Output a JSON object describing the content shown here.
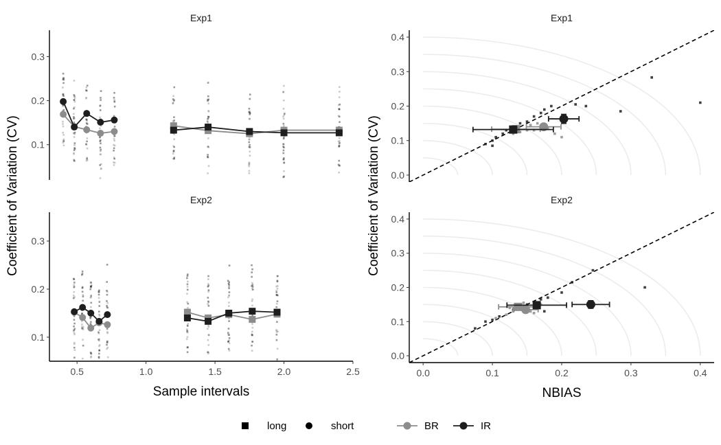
{
  "colors": {
    "BR": "#8c8c8c",
    "IR": "#1e1e1e",
    "circle": "#ececec",
    "axis": "#000000"
  },
  "legend": {
    "shape_items": [
      {
        "label": "long",
        "shape": "square"
      },
      {
        "label": "short",
        "shape": "circle"
      }
    ],
    "color_items": [
      {
        "label": "BR",
        "color": "BR"
      },
      {
        "label": "IR",
        "color": "IR"
      }
    ]
  },
  "chart_data": [
    {
      "type": "line",
      "panel": "left-top",
      "title": "Exp1",
      "xlabel": "Sample intervals",
      "ylabel": "Coefficient of Variation (CV)",
      "xlim": [
        0.3,
        2.5
      ],
      "ylim": [
        0.02,
        0.36
      ],
      "xticks": [
        0.5,
        1.0,
        1.5,
        2.0,
        2.5
      ],
      "xtick_labels": [
        "0.5",
        "1.0",
        "1.5",
        "2.0",
        "2.5"
      ],
      "yticks": [
        0.1,
        0.2,
        0.3
      ],
      "ytick_labels": [
        "0.1",
        "0.2",
        "0.3"
      ],
      "show_x_axis": false,
      "series": [
        {
          "name": "BR",
          "group": "short",
          "shape": "circle",
          "x": [
            0.4,
            0.48,
            0.57,
            0.67,
            0.77
          ],
          "y": [
            0.169,
            0.141,
            0.134,
            0.126,
            0.13
          ]
        },
        {
          "name": "IR",
          "group": "short",
          "shape": "circle",
          "x": [
            0.4,
            0.48,
            0.57,
            0.67,
            0.77
          ],
          "y": [
            0.198,
            0.14,
            0.171,
            0.151,
            0.156
          ]
        },
        {
          "name": "BR",
          "group": "long",
          "shape": "square",
          "x": [
            1.2,
            1.45,
            1.75,
            2.0,
            2.4
          ],
          "y": [
            0.143,
            0.132,
            0.125,
            0.133,
            0.133
          ]
        },
        {
          "name": "IR",
          "group": "long",
          "shape": "square",
          "x": [
            1.2,
            1.45,
            1.75,
            2.0,
            2.4
          ],
          "y": [
            0.133,
            0.14,
            0.13,
            0.127,
            0.127
          ]
        }
      ]
    },
    {
      "type": "line",
      "panel": "left-bottom",
      "title": "Exp2",
      "xlabel": "Sample intervals",
      "ylabel": "Coefficient of Variation (CV)",
      "xlim": [
        0.3,
        2.5
      ],
      "ylim": [
        0.05,
        0.36
      ],
      "xticks": [
        0.5,
        1.0,
        1.5,
        2.0,
        2.5
      ],
      "xtick_labels": [
        "0.5",
        "1.0",
        "1.5",
        "2.0",
        "2.5"
      ],
      "yticks": [
        0.1,
        0.2,
        0.3
      ],
      "ytick_labels": [
        "0.1",
        "0.2",
        "0.3"
      ],
      "show_x_axis": true,
      "series": [
        {
          "name": "BR",
          "group": "short",
          "shape": "circle",
          "x": [
            0.48,
            0.54,
            0.6,
            0.66,
            0.72
          ],
          "y": [
            0.152,
            0.141,
            0.119,
            0.13,
            0.126
          ]
        },
        {
          "name": "IR",
          "group": "short",
          "shape": "circle",
          "x": [
            0.48,
            0.54,
            0.6,
            0.66,
            0.72
          ],
          "y": [
            0.153,
            0.162,
            0.15,
            0.133,
            0.147
          ]
        },
        {
          "name": "BR",
          "group": "long",
          "shape": "square",
          "x": [
            1.3,
            1.45,
            1.6,
            1.77,
            1.95
          ],
          "y": [
            0.152,
            0.14,
            0.147,
            0.137,
            0.148
          ]
        },
        {
          "name": "IR",
          "group": "long",
          "shape": "square",
          "x": [
            1.3,
            1.45,
            1.6,
            1.77,
            1.95
          ],
          "y": [
            0.14,
            0.133,
            0.15,
            0.154,
            0.152
          ]
        }
      ]
    },
    {
      "type": "scatter",
      "panel": "right-top",
      "title": "Exp1",
      "xlabel": "NBIAS",
      "ylabel": "Coefficient of Variation (CV)",
      "xlim": [
        -0.02,
        0.42
      ],
      "ylim": [
        -0.02,
        0.42
      ],
      "xticks": [
        0.0,
        0.1,
        0.2,
        0.3,
        0.4
      ],
      "xtick_labels": [
        "0.0",
        "0.1",
        "0.2",
        "0.3",
        "0.4"
      ],
      "yticks": [
        0.0,
        0.1,
        0.2,
        0.3,
        0.4
      ],
      "ytick_labels": [
        "0.0",
        "0.1",
        "0.2",
        "0.3",
        "0.4"
      ],
      "show_x_axis": false,
      "reference_line": "y = x",
      "reference_circles_radius": [
        0.05,
        0.1,
        0.15,
        0.2,
        0.25,
        0.3,
        0.35,
        0.4
      ],
      "points": [
        {
          "x": 0.09,
          "y": 0.09,
          "color": "IR"
        },
        {
          "x": 0.1,
          "y": 0.1,
          "color": "IR"
        },
        {
          "x": 0.105,
          "y": 0.11,
          "color": "IR"
        },
        {
          "x": 0.115,
          "y": 0.12,
          "color": "IR"
        },
        {
          "x": 0.12,
          "y": 0.13,
          "color": "IR"
        },
        {
          "x": 0.135,
          "y": 0.14,
          "color": "IR"
        },
        {
          "x": 0.14,
          "y": 0.15,
          "color": "IR"
        },
        {
          "x": 0.15,
          "y": 0.155,
          "color": "IR"
        },
        {
          "x": 0.16,
          "y": 0.17,
          "color": "IR"
        },
        {
          "x": 0.17,
          "y": 0.18,
          "color": "IR"
        },
        {
          "x": 0.175,
          "y": 0.19,
          "color": "IR"
        },
        {
          "x": 0.185,
          "y": 0.2,
          "color": "IR"
        },
        {
          "x": 0.22,
          "y": 0.205,
          "color": "IR"
        },
        {
          "x": 0.235,
          "y": 0.2,
          "color": "IR"
        },
        {
          "x": 0.285,
          "y": 0.185,
          "color": "IR"
        },
        {
          "x": 0.33,
          "y": 0.283,
          "color": "IR"
        },
        {
          "x": 0.4,
          "y": 0.21,
          "color": "IR"
        },
        {
          "x": 0.1,
          "y": 0.085,
          "color": "IR"
        },
        {
          "x": 0.13,
          "y": 0.12,
          "color": "BR"
        },
        {
          "x": 0.14,
          "y": 0.125,
          "color": "BR"
        },
        {
          "x": 0.15,
          "y": 0.13,
          "color": "BR"
        },
        {
          "x": 0.16,
          "y": 0.13,
          "color": "BR"
        },
        {
          "x": 0.17,
          "y": 0.14,
          "color": "BR"
        },
        {
          "x": 0.18,
          "y": 0.135,
          "color": "BR"
        },
        {
          "x": 0.19,
          "y": 0.12,
          "color": "BR"
        },
        {
          "x": 0.2,
          "y": 0.11,
          "color": "BR"
        },
        {
          "x": 0.165,
          "y": 0.15,
          "color": "BR"
        },
        {
          "x": 0.155,
          "y": 0.145,
          "color": "BR"
        }
      ],
      "means": [
        {
          "name": "BR",
          "group": "short",
          "x": 0.174,
          "y": 0.14,
          "xerr": 0.025,
          "yerr": 0.008
        },
        {
          "name": "BR",
          "group": "long",
          "x": 0.134,
          "y": 0.133,
          "xerr": 0.035,
          "yerr": 0.008
        },
        {
          "name": "IR",
          "group": "short",
          "x": 0.203,
          "y": 0.163,
          "xerr": 0.022,
          "yerr": 0.013
        },
        {
          "name": "IR",
          "group": "long",
          "x": 0.13,
          "y": 0.132,
          "xerr": 0.058,
          "yerr": 0.008
        }
      ]
    },
    {
      "type": "scatter",
      "panel": "right-bottom",
      "title": "Exp2",
      "xlabel": "NBIAS",
      "ylabel": "Coefficient of Variation (CV)",
      "xlim": [
        -0.02,
        0.42
      ],
      "ylim": [
        -0.02,
        0.42
      ],
      "xticks": [
        0.0,
        0.1,
        0.2,
        0.3,
        0.4
      ],
      "xtick_labels": [
        "0.0",
        "0.1",
        "0.2",
        "0.3",
        "0.4"
      ],
      "yticks": [
        0.0,
        0.1,
        0.2,
        0.3,
        0.4
      ],
      "ytick_labels": [
        "0.0",
        "0.1",
        "0.2",
        "0.3",
        "0.4"
      ],
      "show_x_axis": true,
      "reference_line": "y = x",
      "reference_circles_radius": [
        0.05,
        0.1,
        0.15,
        0.2,
        0.25,
        0.3,
        0.35,
        0.4
      ],
      "points": [
        {
          "x": 0.075,
          "y": 0.08,
          "color": "IR"
        },
        {
          "x": 0.09,
          "y": 0.1,
          "color": "IR"
        },
        {
          "x": 0.1,
          "y": 0.105,
          "color": "IR"
        },
        {
          "x": 0.11,
          "y": 0.115,
          "color": "IR"
        },
        {
          "x": 0.13,
          "y": 0.135,
          "color": "IR"
        },
        {
          "x": 0.15,
          "y": 0.15,
          "color": "IR"
        },
        {
          "x": 0.17,
          "y": 0.165,
          "color": "IR"
        },
        {
          "x": 0.18,
          "y": 0.17,
          "color": "IR"
        },
        {
          "x": 0.2,
          "y": 0.185,
          "color": "IR"
        },
        {
          "x": 0.215,
          "y": 0.215,
          "color": "IR"
        },
        {
          "x": 0.245,
          "y": 0.25,
          "color": "IR"
        },
        {
          "x": 0.32,
          "y": 0.2,
          "color": "IR"
        },
        {
          "x": 0.165,
          "y": 0.14,
          "color": "IR"
        },
        {
          "x": 0.175,
          "y": 0.13,
          "color": "IR"
        },
        {
          "x": 0.12,
          "y": 0.12,
          "color": "BR"
        },
        {
          "x": 0.13,
          "y": 0.13,
          "color": "BR"
        },
        {
          "x": 0.14,
          "y": 0.14,
          "color": "BR"
        },
        {
          "x": 0.15,
          "y": 0.145,
          "color": "BR"
        },
        {
          "x": 0.155,
          "y": 0.13,
          "color": "BR"
        },
        {
          "x": 0.16,
          "y": 0.125,
          "color": "BR"
        },
        {
          "x": 0.145,
          "y": 0.155,
          "color": "BR"
        },
        {
          "x": 0.125,
          "y": 0.14,
          "color": "BR"
        },
        {
          "x": 0.17,
          "y": 0.15,
          "color": "BR"
        },
        {
          "x": 0.105,
          "y": 0.11,
          "color": "BR"
        }
      ],
      "means": [
        {
          "name": "BR",
          "group": "short",
          "x": 0.148,
          "y": 0.135,
          "xerr": 0.018,
          "yerr": 0.007
        },
        {
          "name": "BR",
          "group": "long",
          "x": 0.137,
          "y": 0.143,
          "xerr": 0.028,
          "yerr": 0.008
        },
        {
          "name": "IR",
          "group": "short",
          "x": 0.242,
          "y": 0.15,
          "xerr": 0.027,
          "yerr": 0.011
        },
        {
          "name": "IR",
          "group": "long",
          "x": 0.164,
          "y": 0.148,
          "xerr": 0.043,
          "yerr": 0.01
        }
      ]
    }
  ]
}
